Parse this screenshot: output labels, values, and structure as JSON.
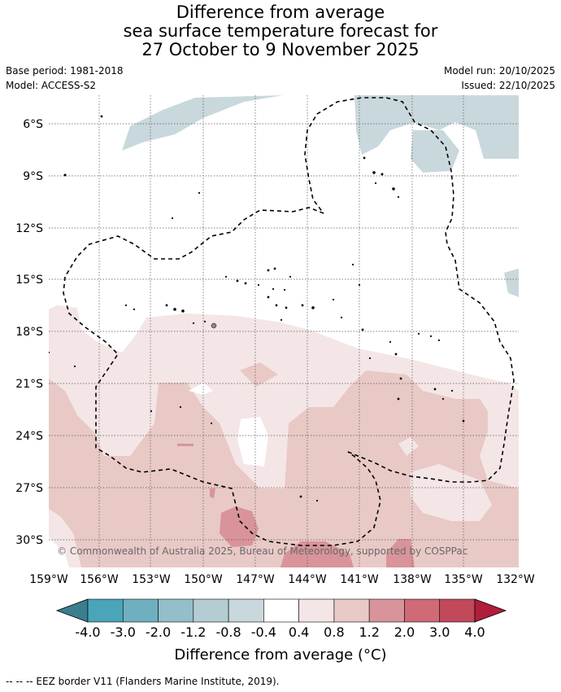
{
  "title": {
    "line1": "Difference from average",
    "line2": "sea surface temperature forecast for",
    "line3": "27 October to 9 November 2025"
  },
  "meta": {
    "base_period": "Base period: 1981-2018",
    "model": "Model: ACCESS-S2",
    "model_run": "Model run: 20/10/2025",
    "issued": "Issued: 22/10/2025"
  },
  "map": {
    "lat_labels": [
      "6°S",
      "9°S",
      "12°S",
      "15°S",
      "18°S",
      "21°S",
      "24°S",
      "27°S",
      "30°S"
    ],
    "lon_labels": [
      "159°W",
      "156°W",
      "153°W",
      "150°W",
      "147°W",
      "144°W",
      "141°W",
      "138°W",
      "135°W",
      "132°W"
    ],
    "copyright": "© Commonwealth of Australia 2025, Bureau of Meteorology, supported by COSPPac"
  },
  "colorbar": {
    "labels": [
      "-4.0",
      "-3.0",
      "-2.0",
      "-1.2",
      "-0.8",
      "-0.4",
      "0.4",
      "0.8",
      "1.2",
      "2.0",
      "3.0",
      "4.0"
    ],
    "colors": [
      "#3b7e8e",
      "#4aa5b8",
      "#6fb0c0",
      "#92bfca",
      "#b3cdd3",
      "#c9d8dc",
      "#ffffff",
      "#f4e6e6",
      "#e8c9c6",
      "#d8949a",
      "#cf6a76",
      "#c2495a",
      "#b01e3c"
    ],
    "title": "Difference from average (°C)"
  },
  "footer": "-- -- -- EEZ border V11 (Flanders Marine Institute, 2019)."
}
